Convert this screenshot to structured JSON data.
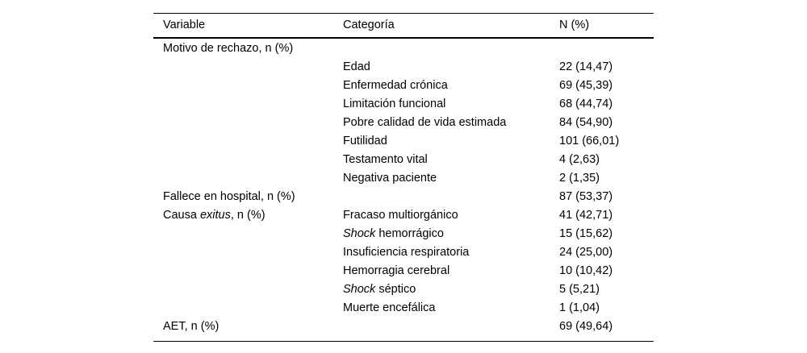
{
  "colors": {
    "text": "#000000",
    "rule": "#000000",
    "background": "#ffffff"
  },
  "table": {
    "columns": [
      "Variable",
      "Categoría",
      "N (%)"
    ],
    "rows": [
      {
        "variable": [
          {
            "text": "Motivo de rechazo, n (%)"
          }
        ],
        "category": [],
        "value": []
      },
      {
        "variable": [],
        "category": [
          {
            "text": "Edad"
          }
        ],
        "value": [
          {
            "text": "22 (14,47)"
          }
        ]
      },
      {
        "variable": [],
        "category": [
          {
            "text": "Enfermedad crónica"
          }
        ],
        "value": [
          {
            "text": "69 (45,39)"
          }
        ]
      },
      {
        "variable": [],
        "category": [
          {
            "text": "Limitación funcional"
          }
        ],
        "value": [
          {
            "text": "68 (44,74)"
          }
        ]
      },
      {
        "variable": [],
        "category": [
          {
            "text": "Pobre calidad de vida estimada"
          }
        ],
        "value": [
          {
            "text": "84 (54,90)"
          }
        ]
      },
      {
        "variable": [],
        "category": [
          {
            "text": "Futilidad"
          }
        ],
        "value": [
          {
            "text": "101 (66,01)"
          }
        ]
      },
      {
        "variable": [],
        "category": [
          {
            "text": "Testamento vital"
          }
        ],
        "value": [
          {
            "text": "4 (2,63)"
          }
        ]
      },
      {
        "variable": [],
        "category": [
          {
            "text": "Negativa paciente"
          }
        ],
        "value": [
          {
            "text": "2 (1,35)"
          }
        ]
      },
      {
        "variable": [
          {
            "text": "Fallece en hospital, n (%)"
          }
        ],
        "category": [],
        "value": [
          {
            "text": "87 (53,37)"
          }
        ]
      },
      {
        "variable": [
          {
            "text": "Causa "
          },
          {
            "text": "exitus",
            "italic": true
          },
          {
            "text": ", n (%)"
          }
        ],
        "category": [
          {
            "text": "Fracaso multiorgánico"
          }
        ],
        "value": [
          {
            "text": "41 (42,71)"
          }
        ]
      },
      {
        "variable": [],
        "category": [
          {
            "text": "Shock",
            "italic": true
          },
          {
            "text": " hemorrágico"
          }
        ],
        "value": [
          {
            "text": "15 (15,62)"
          }
        ]
      },
      {
        "variable": [],
        "category": [
          {
            "text": "Insuficiencia respiratoria"
          }
        ],
        "value": [
          {
            "text": "24 (25,00)"
          }
        ]
      },
      {
        "variable": [],
        "category": [
          {
            "text": "Hemorragia cerebral"
          }
        ],
        "value": [
          {
            "text": "10 (10,42)"
          }
        ]
      },
      {
        "variable": [],
        "category": [
          {
            "text": "Shock",
            "italic": true
          },
          {
            "text": " séptico"
          }
        ],
        "value": [
          {
            "text": "5 (5,21)"
          }
        ]
      },
      {
        "variable": [],
        "category": [
          {
            "text": "Muerte encefálica"
          }
        ],
        "value": [
          {
            "text": "1 (1,04)"
          }
        ]
      },
      {
        "variable": [
          {
            "text": "AET, n (%)"
          }
        ],
        "category": [],
        "value": [
          {
            "text": "69 (49,64)"
          }
        ]
      }
    ]
  }
}
